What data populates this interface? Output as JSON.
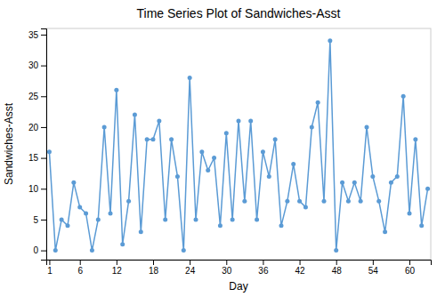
{
  "chart_data": {
    "type": "line",
    "title": "Time Series Plot of Sandwiches-Asst",
    "xlabel": "Day",
    "ylabel": "Sandwiches-Asst",
    "x": [
      1,
      2,
      3,
      4,
      5,
      6,
      7,
      8,
      9,
      10,
      11,
      12,
      13,
      14,
      15,
      16,
      17,
      18,
      19,
      20,
      21,
      22,
      23,
      24,
      25,
      26,
      27,
      28,
      29,
      30,
      31,
      32,
      33,
      34,
      35,
      36,
      37,
      38,
      39,
      40,
      41,
      42,
      43,
      44,
      45,
      46,
      47,
      48,
      49,
      50,
      51,
      52,
      53,
      54,
      55,
      56,
      57,
      58,
      59,
      60,
      61,
      62,
      63
    ],
    "values": [
      16,
      0,
      5,
      4,
      11,
      7,
      6,
      0,
      5,
      20,
      6,
      26,
      1,
      8,
      22,
      3,
      18,
      18,
      21,
      5,
      18,
      12,
      0,
      28,
      5,
      16,
      13,
      15,
      4,
      19,
      5,
      21,
      8,
      21,
      5,
      16,
      12,
      18,
      4,
      8,
      14,
      8,
      7,
      20,
      24,
      8,
      34,
      0,
      11,
      8,
      11,
      8,
      20,
      12,
      8,
      3,
      11,
      12,
      25,
      6,
      18,
      4,
      10
    ],
    "xlim": [
      0.5,
      63.5
    ],
    "ylim": [
      -1.5,
      36
    ],
    "xticks": [
      1,
      6,
      12,
      18,
      24,
      30,
      36,
      42,
      48,
      54,
      60
    ],
    "yticks": [
      0,
      5,
      10,
      15,
      20,
      25,
      30,
      35
    ],
    "color": "#5B9BD5",
    "marker": "circle",
    "grid": false
  }
}
